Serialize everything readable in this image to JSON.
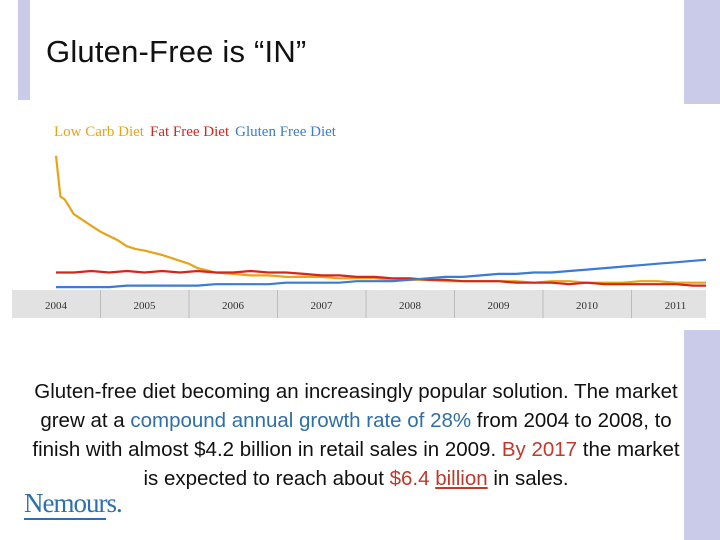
{
  "slide": {
    "title": "Gluten-Free is “IN”",
    "body": {
      "p1": "Gluten-free diet becoming an increasingly popular solution. The market grew at a ",
      "p2": "compound annual growth rate of 28%",
      "p3": " from 2004 to 2008, to finish with almost $4.2 billion in retail sales in 2009. ",
      "p4": "By 2017",
      "p5": " the market is expected to reach about ",
      "p6": "$6.4 ",
      "p7": "billion",
      "p8": " in sales."
    },
    "logo_text": "Nemours."
  },
  "colors": {
    "low_carb": "#e8a317",
    "fat_free": "#d3261c",
    "gluten_free": "#3a7bd5",
    "accent_bar": "#c9cbe8",
    "highlight_blue": "#2e6fa7",
    "highlight_red": "#c0392b",
    "logo": "#2f6fb0"
  },
  "chart_data": {
    "type": "line",
    "title": "",
    "xlabel": "",
    "ylabel": "",
    "x_ticks": [
      "2004",
      "2005",
      "2006",
      "2007",
      "2008",
      "2009",
      "2010",
      "2011"
    ],
    "xlim": [
      2004.0,
      2011.65
    ],
    "ylim": [
      0,
      100
    ],
    "grid": false,
    "legend_position": "top-left",
    "series": [
      {
        "name": "Low Carb Diet",
        "color": "#e8a317",
        "x": [
          2004.0,
          2004.05,
          2004.1,
          2004.2,
          2004.3,
          2004.4,
          2004.5,
          2004.6,
          2004.7,
          2004.8,
          2004.9,
          2005.0,
          2005.2,
          2005.4,
          2005.5,
          2005.6,
          2005.8,
          2006.0,
          2006.2,
          2006.4,
          2006.6,
          2006.8,
          2007.0,
          2007.2,
          2007.4,
          2007.6,
          2007.8,
          2008.0,
          2008.2,
          2008.4,
          2008.6,
          2008.8,
          2009.0,
          2009.2,
          2009.4,
          2009.6,
          2009.8,
          2010.0,
          2010.2,
          2010.4,
          2010.6,
          2010.8,
          2011.0,
          2011.2,
          2011.4,
          2011.65
        ],
        "values": [
          92,
          64,
          62,
          52,
          48,
          44,
          40,
          37,
          34,
          30,
          28,
          27,
          24,
          20,
          18,
          15,
          12,
          11,
          10,
          10,
          9,
          9,
          9,
          8,
          8,
          8,
          7,
          7,
          7,
          6,
          6,
          6,
          6,
          6,
          5,
          6,
          6,
          5,
          5,
          5,
          6,
          6,
          5,
          5,
          5,
          5
        ]
      },
      {
        "name": "Fat Free Diet",
        "color": "#d3261c",
        "x": [
          2004.0,
          2004.2,
          2004.4,
          2004.6,
          2004.8,
          2005.0,
          2005.2,
          2005.4,
          2005.6,
          2005.8,
          2006.0,
          2006.2,
          2006.4,
          2006.6,
          2006.8,
          2007.0,
          2007.2,
          2007.4,
          2007.6,
          2007.8,
          2008.0,
          2008.2,
          2008.4,
          2008.6,
          2008.8,
          2009.0,
          2009.2,
          2009.4,
          2009.6,
          2009.8,
          2010.0,
          2010.2,
          2010.4,
          2010.6,
          2010.8,
          2011.0,
          2011.2,
          2011.4,
          2011.65
        ],
        "values": [
          12,
          12,
          13,
          12,
          13,
          12,
          13,
          12,
          13,
          12,
          12,
          13,
          12,
          12,
          11,
          10,
          10,
          9,
          9,
          8,
          8,
          7,
          7,
          6,
          6,
          6,
          5,
          5,
          5,
          4,
          5,
          4,
          4,
          4,
          4,
          4,
          3,
          3,
          3
        ]
      },
      {
        "name": "Gluten Free Diet",
        "color": "#3a7bd5",
        "x": [
          2004.0,
          2004.2,
          2004.4,
          2004.6,
          2004.8,
          2005.0,
          2005.2,
          2005.4,
          2005.6,
          2005.8,
          2006.0,
          2006.2,
          2006.4,
          2006.6,
          2006.8,
          2007.0,
          2007.2,
          2007.4,
          2007.6,
          2007.8,
          2008.0,
          2008.2,
          2008.4,
          2008.6,
          2008.8,
          2009.0,
          2009.2,
          2009.4,
          2009.6,
          2009.8,
          2010.0,
          2010.2,
          2010.4,
          2010.6,
          2010.8,
          2011.0,
          2011.2,
          2011.4,
          2011.65
        ],
        "values": [
          2,
          2,
          2,
          2,
          3,
          3,
          3,
          3,
          3,
          4,
          4,
          4,
          4,
          5,
          5,
          5,
          5,
          6,
          6,
          6,
          7,
          8,
          9,
          9,
          10,
          11,
          11,
          12,
          12,
          13,
          14,
          15,
          16,
          17,
          18,
          19,
          20,
          21,
          21
        ]
      }
    ]
  }
}
